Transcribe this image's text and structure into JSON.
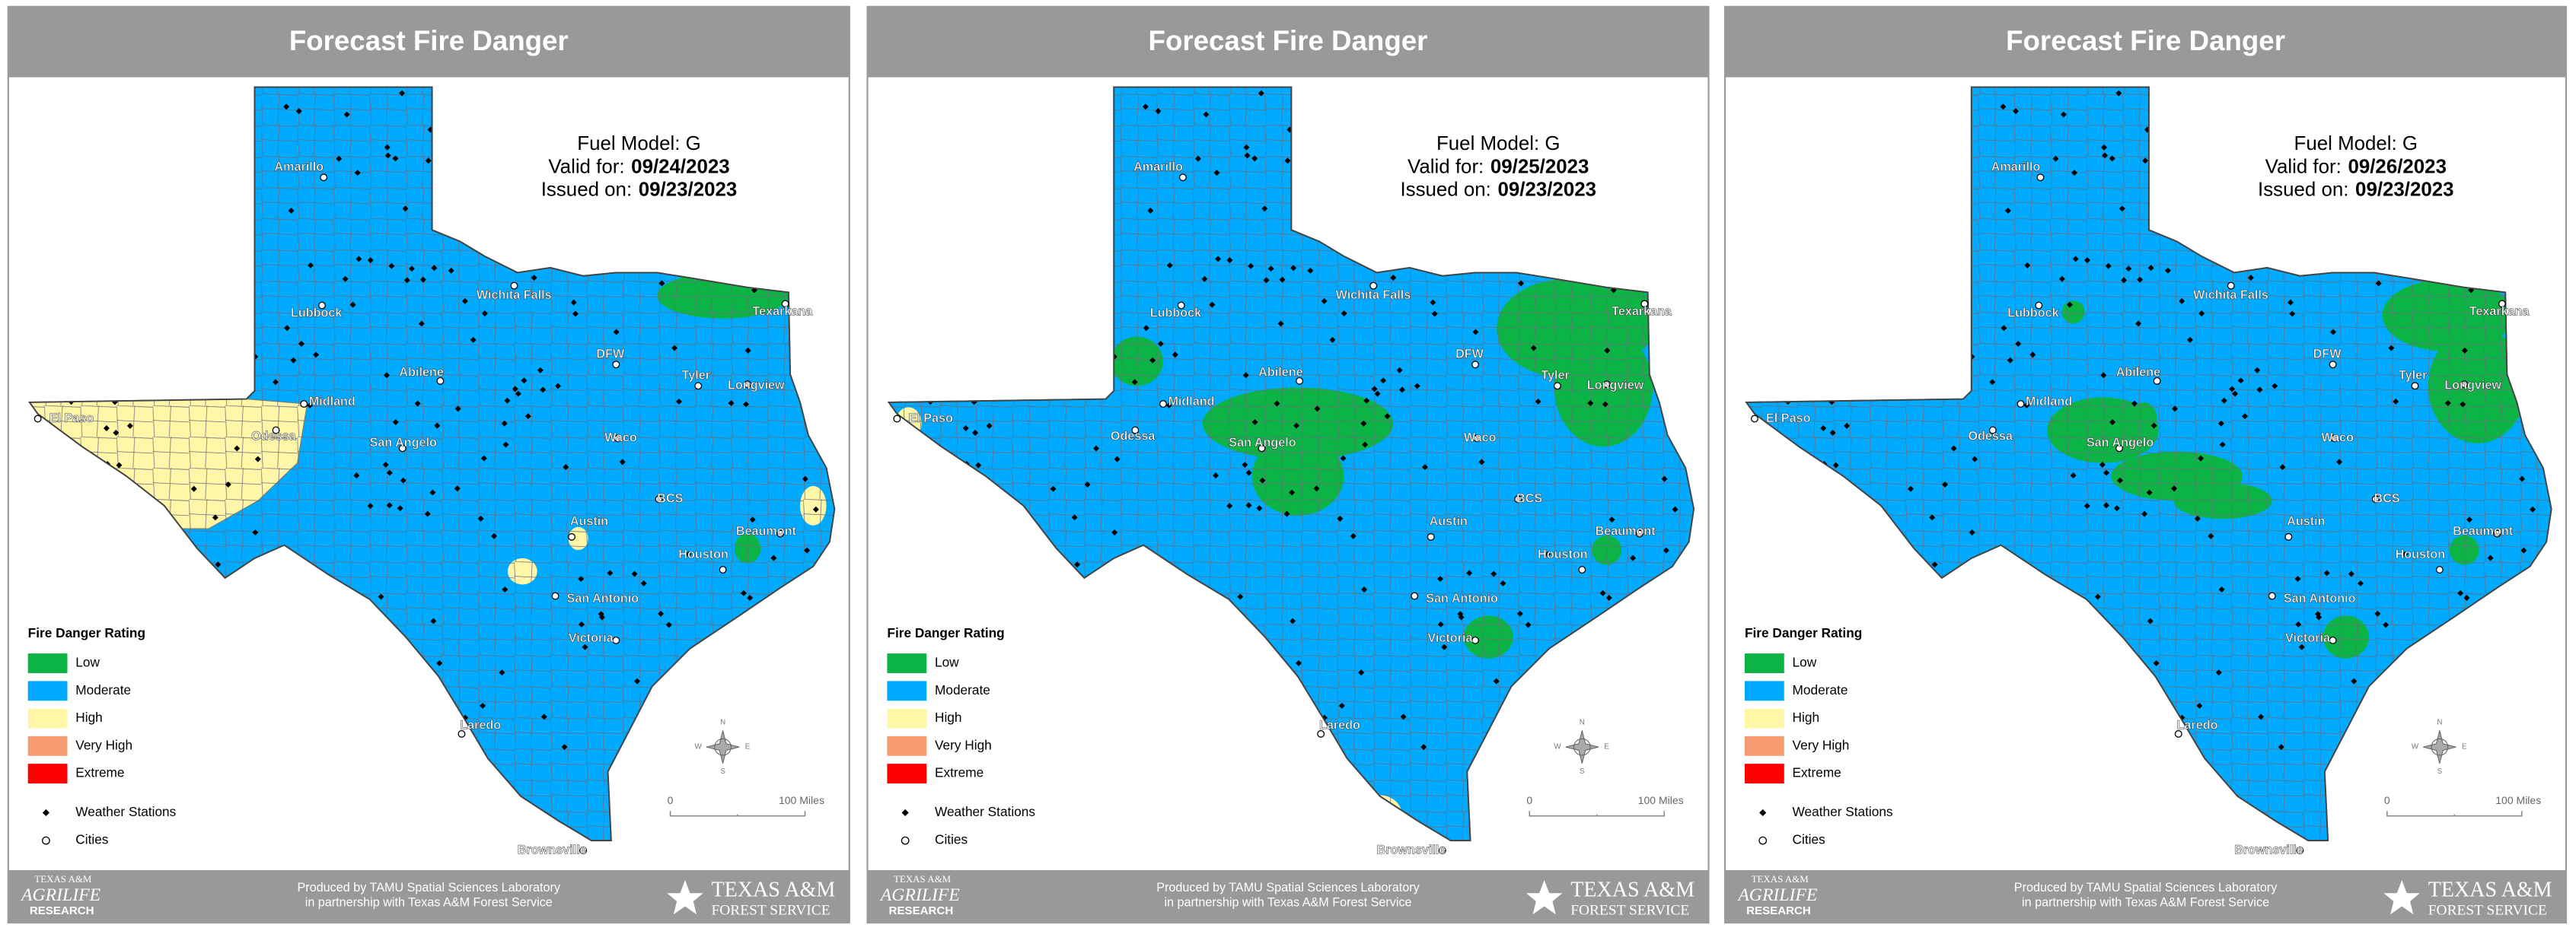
{
  "panels": [
    {
      "title": "Forecast Fire Danger",
      "fuel_model": "Fuel Model: G",
      "valid_label": "Valid for:",
      "valid_date": "09/24/2023",
      "issued_label": "Issued on:",
      "issued_date": "09/23/2023",
      "legend": {
        "title": "Fire Danger Rating",
        "ratings": [
          {
            "label": "Low",
            "color": "#0cb446"
          },
          {
            "label": "Moderate",
            "color": "#00aaff"
          },
          {
            "label": "High",
            "color": "#fff6a8"
          },
          {
            "label": "Very High",
            "color": "#f79b72"
          },
          {
            "label": "Extreme",
            "color": "#ff0000"
          }
        ],
        "weather_stations": "Weather Stations",
        "cities": "Cities"
      },
      "city_labels": [
        "Amarillo",
        "Lubbock",
        "Wichita Falls",
        "Texarkana",
        "DFW",
        "Abilene",
        "Midland",
        "El Paso",
        "Odessa",
        "San Angelo",
        "Tyler",
        "Longview",
        "Waco",
        "BCS",
        "Austin",
        "Beaumont",
        "Houston",
        "San Antonio",
        "Victoria",
        "Laredo",
        "Brownsville"
      ],
      "compass": [
        "N",
        "E",
        "S",
        "W"
      ],
      "scale": [
        "0",
        "100 Miles"
      ],
      "footer": [
        "Produced by TAMU Spatial Sciences Laboratory",
        "in partnership with Texas A&M Forest Service"
      ],
      "logo_left": [
        "TEXAS A&M",
        "AGRILIFE",
        "RESEARCH"
      ],
      "logo_right": [
        "TEXAS A&M",
        "FOREST SERVICE"
      ]
    },
    {
      "title": "Forecast Fire Danger",
      "fuel_model": "Fuel Model: G",
      "valid_label": "Valid for:",
      "valid_date": "09/25/2023",
      "issued_label": "Issued on:",
      "issued_date": "09/23/2023",
      "legend": {
        "title": "Fire Danger Rating",
        "ratings": [
          {
            "label": "Low",
            "color": "#0cb446"
          },
          {
            "label": "Moderate",
            "color": "#00aaff"
          },
          {
            "label": "High",
            "color": "#fff6a8"
          },
          {
            "label": "Very High",
            "color": "#f79b72"
          },
          {
            "label": "Extreme",
            "color": "#ff0000"
          }
        ],
        "weather_stations": "Weather Stations",
        "cities": "Cities"
      },
      "city_labels": [
        "Amarillo",
        "Lubbock",
        "Wichita Falls",
        "Texarkana",
        "DFW",
        "Abilene",
        "Midland",
        "El Paso",
        "Odessa",
        "San Angelo",
        "Tyler",
        "Longview",
        "Waco",
        "BCS",
        "Austin",
        "Beaumont",
        "Houston",
        "San Antonio",
        "Victoria",
        "Laredo",
        "Brownsville"
      ],
      "compass": [
        "N",
        "E",
        "S",
        "W"
      ],
      "scale": [
        "0",
        "100 Miles"
      ],
      "footer": [
        "Produced by TAMU Spatial Sciences Laboratory",
        "in partnership with Texas A&M Forest Service"
      ],
      "logo_left": [
        "TEXAS A&M",
        "AGRILIFE",
        "RESEARCH"
      ],
      "logo_right": [
        "TEXAS A&M",
        "FOREST SERVICE"
      ]
    },
    {
      "title": "Forecast Fire Danger",
      "fuel_model": "Fuel Model: G",
      "valid_label": "Valid for:",
      "valid_date": "09/26/2023",
      "issued_label": "Issued on:",
      "issued_date": "09/23/2023",
      "legend": {
        "title": "Fire Danger Rating",
        "ratings": [
          {
            "label": "Low",
            "color": "#0cb446"
          },
          {
            "label": "Moderate",
            "color": "#00aaff"
          },
          {
            "label": "High",
            "color": "#fff6a8"
          },
          {
            "label": "Very High",
            "color": "#f79b72"
          },
          {
            "label": "Extreme",
            "color": "#ff0000"
          }
        ],
        "weather_stations": "Weather Stations",
        "cities": "Cities"
      },
      "city_labels": [
        "Amarillo",
        "Lubbock",
        "Wichita Falls",
        "Texarkana",
        "DFW",
        "Abilene",
        "Midland",
        "El Paso",
        "Odessa",
        "San Angelo",
        "Tyler",
        "Longview",
        "Waco",
        "BCS",
        "Austin",
        "Beaumont",
        "Houston",
        "San Antonio",
        "Victoria",
        "Laredo",
        "Brownsville"
      ],
      "compass": [
        "N",
        "E",
        "S",
        "W"
      ],
      "scale": [
        "0",
        "100 Miles"
      ],
      "footer": [
        "Produced by TAMU Spatial Sciences Laboratory",
        "in partnership with Texas A&M Forest Service"
      ],
      "logo_left": [
        "TEXAS A&M",
        "AGRILIFE",
        "RESEARCH"
      ],
      "logo_right": [
        "TEXAS A&M",
        "FOREST SERVICE"
      ]
    }
  ]
}
